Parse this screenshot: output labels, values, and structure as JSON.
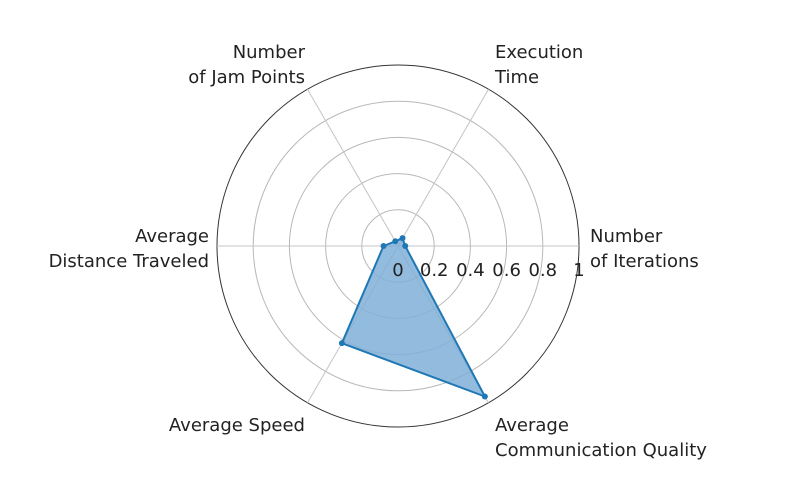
{
  "chart_data": {
    "type": "radar",
    "axes": [
      {
        "label_lines": [
          "Number",
          "of Iterations"
        ]
      },
      {
        "label_lines": [
          "Execution",
          "Time"
        ]
      },
      {
        "label_lines": [
          "Number",
          "of Jam Points"
        ]
      },
      {
        "label_lines": [
          "Average",
          "Distance Traveled"
        ]
      },
      {
        "label_lines": [
          "Average Speed"
        ]
      },
      {
        "label_lines": [
          "Average",
          "Communication Quality"
        ]
      }
    ],
    "series": [
      {
        "values": [
          0.04,
          0.05,
          0.03,
          0.08,
          0.62,
          0.96
        ],
        "color": "#1f77b4",
        "fill": "#7fafd8"
      }
    ],
    "radial_ticks": [
      "0",
      "0.2",
      "0.4",
      "0.6",
      "0.8",
      "1"
    ],
    "radial_range": [
      0,
      1
    ],
    "grid": true,
    "legend": false
  }
}
